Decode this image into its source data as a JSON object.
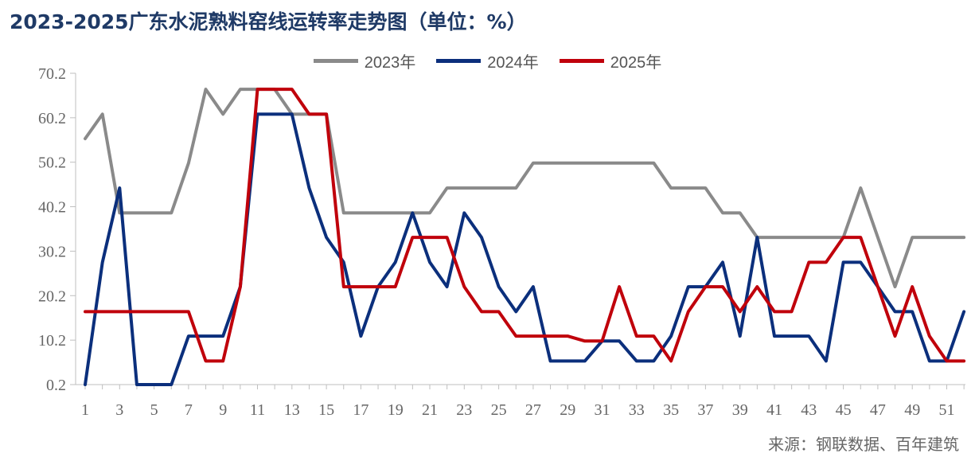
{
  "chart_data": {
    "type": "line",
    "title": "2023-2025广东水泥熟料窑线运转率走势图（单位：%）",
    "source": "来源：钢联数据、百年建筑",
    "x": [
      1,
      2,
      3,
      4,
      5,
      6,
      7,
      8,
      9,
      10,
      11,
      12,
      13,
      14,
      15,
      16,
      17,
      18,
      19,
      20,
      21,
      22,
      23,
      24,
      25,
      26,
      27,
      28,
      29,
      30,
      31,
      32,
      33,
      34,
      35,
      36,
      37,
      38,
      39,
      40,
      41,
      42,
      43,
      44,
      45,
      46,
      47,
      48,
      49,
      50,
      51,
      52
    ],
    "x_tick_labels": [
      "1",
      "3",
      "5",
      "7",
      "9",
      "11",
      "13",
      "15",
      "17",
      "19",
      "21",
      "23",
      "25",
      "27",
      "29",
      "31",
      "33",
      "35",
      "37",
      "39",
      "41",
      "43",
      "45",
      "47",
      "49",
      "51"
    ],
    "y_tick_labels": [
      "0.2",
      "10.2",
      "20.2",
      "30.2",
      "40.2",
      "50.2",
      "60.2",
      "70.2"
    ],
    "ylim": [
      0.2,
      70.2
    ],
    "grid": false,
    "legend_position": "top-center",
    "series": [
      {
        "name": "2023年",
        "color": "#8a8a8a",
        "values": [
          55.5,
          61,
          38.8,
          38.8,
          38.8,
          38.8,
          50,
          66.6,
          61,
          66.6,
          66.6,
          66.6,
          61,
          61,
          61,
          38.8,
          38.8,
          38.8,
          38.8,
          38.8,
          38.8,
          44.4,
          44.4,
          44.4,
          44.4,
          44.4,
          50,
          50,
          50,
          50,
          50,
          50,
          50,
          50,
          44.4,
          44.4,
          44.4,
          38.8,
          38.8,
          33.3,
          33.3,
          33.3,
          33.3,
          33.3,
          33.3,
          44.4,
          33.3,
          22.2,
          33.3,
          33.3,
          33.3,
          33.3
        ]
      },
      {
        "name": "2024年",
        "color": "#0b2f7c",
        "values": [
          0.2,
          27.7,
          44.4,
          0.2,
          0.2,
          0.2,
          11.1,
          11.1,
          11.1,
          22.2,
          61,
          61,
          61,
          44.4,
          33.3,
          27.7,
          11.1,
          22.2,
          27.7,
          38.8,
          27.7,
          22.2,
          38.8,
          33.3,
          22.2,
          16.6,
          22.2,
          5.5,
          5.5,
          5.5,
          10,
          10,
          5.5,
          5.5,
          11.1,
          22.2,
          22.2,
          27.7,
          11.1,
          33.3,
          11.1,
          11.1,
          11.1,
          5.5,
          27.7,
          27.7,
          22.2,
          16.6,
          16.6,
          5.5,
          5.5,
          16.6
        ]
      },
      {
        "name": "2025年",
        "color": "#c0000b",
        "values": [
          16.6,
          16.6,
          16.6,
          16.6,
          16.6,
          16.6,
          16.6,
          5.5,
          5.5,
          22.2,
          66.6,
          66.6,
          66.6,
          61,
          61,
          22.2,
          22.2,
          22.2,
          22.2,
          33.3,
          33.3,
          33.3,
          22.2,
          16.6,
          16.6,
          11.1,
          11.1,
          11.1,
          11.1,
          10,
          10,
          22.2,
          11.1,
          11.1,
          5.5,
          16.6,
          22.2,
          22.2,
          16.6,
          22.2,
          16.6,
          16.6,
          27.7,
          27.7,
          33.3,
          33.3,
          22.2,
          11.1,
          22.2,
          11.1,
          5.5,
          5.5
        ]
      }
    ]
  }
}
